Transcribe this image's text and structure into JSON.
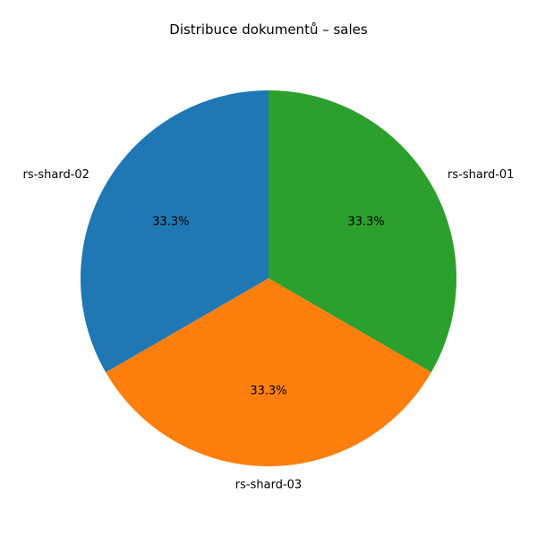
{
  "chart_data": {
    "type": "pie",
    "title": "Distribuce dokumentů – sales",
    "categories": [
      "rs-shard-01",
      "rs-shard-03",
      "rs-shard-02"
    ],
    "values": [
      1,
      1,
      1
    ],
    "percent_labels": [
      "33.3%",
      "33.3%",
      "33.3%"
    ],
    "colors": [
      "#2ca02c",
      "#ff7f0e",
      "#1f77b4"
    ],
    "start_angle_deg": 90,
    "direction": "clockwise",
    "legend": "none"
  }
}
